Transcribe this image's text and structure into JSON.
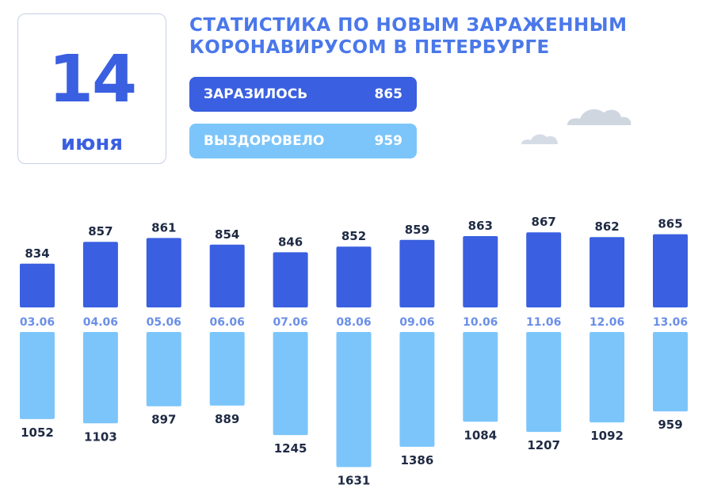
{
  "header": {
    "day": "14",
    "month": "июня",
    "title_line1": "СТАТИСТИКА ПО НОВЫМ ЗАРАЖЕННЫМ",
    "title_line2": "КОРОНАВИРУСОМ В ПЕТЕРБУРГЕ"
  },
  "summary": {
    "infected_label": "ЗАРАЗИЛОСЬ",
    "infected_value": "865",
    "recovered_label": "ВЫЗДОРОВЕЛО",
    "recovered_value": "959"
  },
  "colors": {
    "infected": "#3a5fe0",
    "recovered": "#7cc5fa",
    "title": "#4a78ea",
    "date_label": "#6b8fe8"
  },
  "chart_data": {
    "type": "bar",
    "categories": [
      "03.06",
      "04.06",
      "05.06",
      "06.06",
      "07.06",
      "08.06",
      "09.06",
      "10.06",
      "11.06",
      "12.06",
      "13.06"
    ],
    "series": [
      {
        "name": "ЗАРАЗИЛОСЬ",
        "values": [
          834,
          857,
          861,
          854,
          846,
          852,
          859,
          863,
          867,
          862,
          865
        ]
      },
      {
        "name": "ВЫЗДОРОВЕЛО",
        "values": [
          1052,
          1103,
          897,
          889,
          1245,
          1631,
          1386,
          1084,
          1207,
          1092,
          959
        ]
      }
    ]
  }
}
